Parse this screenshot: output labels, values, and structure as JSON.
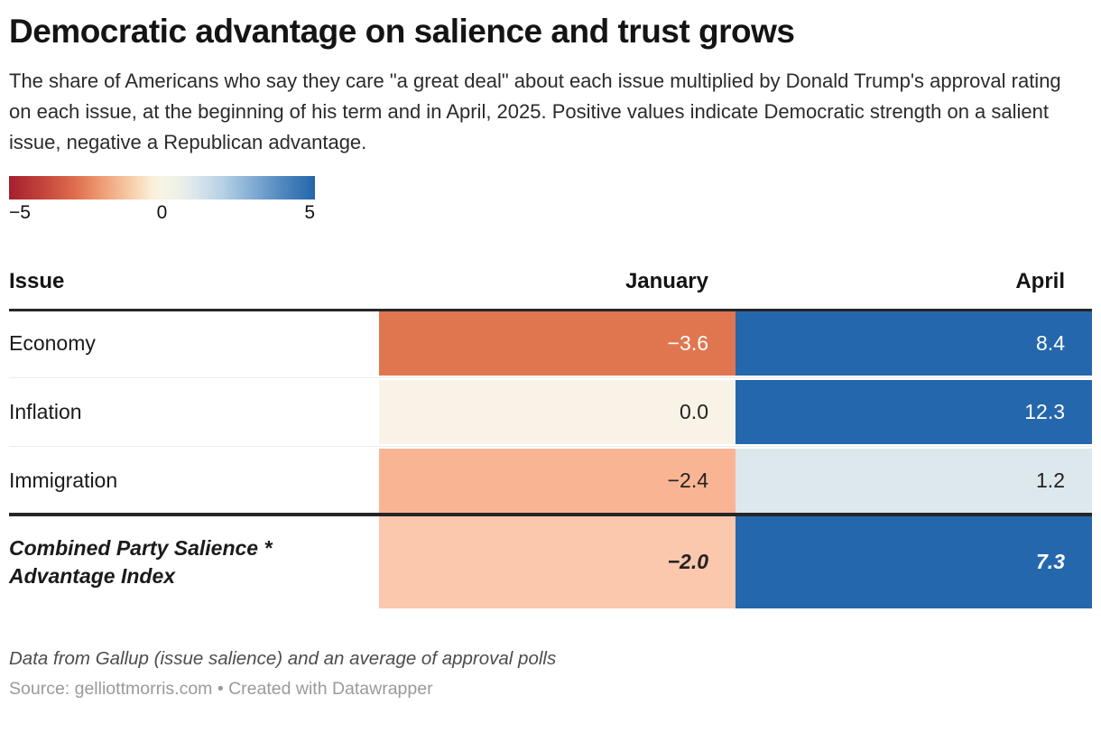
{
  "header": {
    "title": "Democratic advantage on salience and trust grows",
    "subtitle": "The share of Americans who say they care \"a great deal\" about each issue multiplied by Donald Trump's approval rating on each issue, at the beginning of his term and in April, 2025. Positive values indicate Democratic strength on a salient issue, negative a Republican advantage."
  },
  "legend": {
    "min_label": "−5",
    "mid_label": "0",
    "max_label": "5",
    "min_color": "#a51f2d",
    "mid_color": "#f8f4e4",
    "max_color": "#2365ab"
  },
  "table": {
    "columns": {
      "issue": "Issue",
      "january": "January",
      "april": "April"
    },
    "rows": [
      {
        "label": "Economy",
        "cells": [
          {
            "value": "−3.6",
            "bg": "#e0764f",
            "fg": "#ffffff"
          },
          {
            "value": "8.4",
            "bg": "#2467ac",
            "fg": "#ffffff"
          }
        ]
      },
      {
        "label": "Inflation",
        "cells": [
          {
            "value": "0.0",
            "bg": "#f8f3e6",
            "fg": "#222222"
          },
          {
            "value": "12.3",
            "bg": "#2467ac",
            "fg": "#ffffff"
          }
        ]
      },
      {
        "label": "Immigration",
        "cells": [
          {
            "value": "−2.4",
            "bg": "#f9b593",
            "fg": "#222222"
          },
          {
            "value": "1.2",
            "bg": "#dde8ec",
            "fg": "#222222"
          }
        ]
      },
      {
        "label": "Combined Party Salience * Advantage Index",
        "cells": [
          {
            "value": "−2.0",
            "bg": "#fbc7ad",
            "fg": "#222222"
          },
          {
            "value": "7.3",
            "bg": "#2467ac",
            "fg": "#ffffff"
          }
        ]
      }
    ]
  },
  "footer": {
    "notes": "Data from Gallup (issue salience) and an average of approval polls",
    "source": "Source: gelliottmorris.com • Created with Datawrapper"
  },
  "chart_data": {
    "type": "heatmap",
    "title": "Democratic advantage on salience and trust grows",
    "subtitle": "The share of Americans who say they care \"a great deal\" about each issue multiplied by Donald Trump's approval rating on each issue, at the beginning of his term and in April, 2025. Positive values indicate Democratic strength on a salient issue, negative a Republican advantage.",
    "categories": [
      "Economy",
      "Inflation",
      "Immigration",
      "Combined Party Salience * Advantage Index"
    ],
    "series": [
      {
        "name": "January",
        "values": [
          -3.6,
          0.0,
          -2.4,
          -2.0
        ]
      },
      {
        "name": "April",
        "values": [
          8.4,
          12.3,
          1.2,
          7.3
        ]
      }
    ],
    "color_scale": {
      "min": -5,
      "mid": 0,
      "max": 5,
      "min_color": "#a51f2d",
      "mid_color": "#f8f4e4",
      "max_color": "#2365ab",
      "ticks": [
        -5,
        0,
        5
      ]
    },
    "legend_position": "top-left",
    "notes": "Data from Gallup (issue salience) and an average of approval polls",
    "source": "Source: gelliottmorris.com • Created with Datawrapper"
  }
}
